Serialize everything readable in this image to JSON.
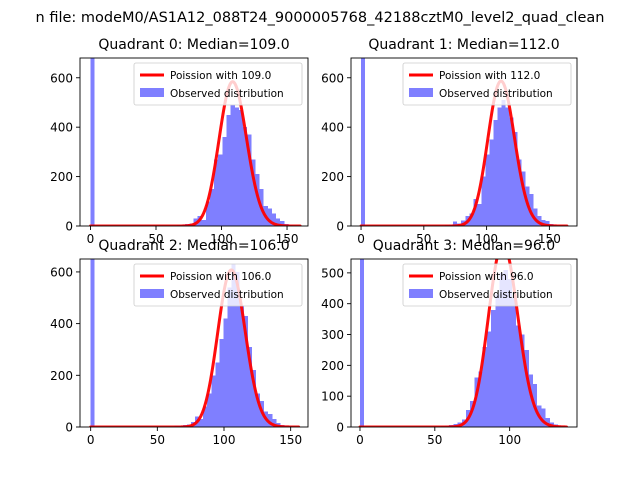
{
  "figure_title": "n file: modeM0/AS1A12_088T24_9000005768_42188cztM0_level2_quad_clean",
  "chart_data": [
    {
      "type": "histogram",
      "title": "Quadrant 0: Median=109.0",
      "xlim": [
        -8,
        166
      ],
      "ylim": [
        0,
        680
      ],
      "xticks": [
        0,
        50,
        100,
        150
      ],
      "yticks": [
        0,
        200,
        400,
        600
      ],
      "xtick_labels": [
        "0",
        "50",
        "100",
        "150"
      ],
      "ytick_labels": [
        "0",
        "200",
        "400",
        "600"
      ],
      "legend": [
        "Poission with 109.0",
        "Observed distribution"
      ],
      "legend_position": "top-right",
      "poisson_mean": 109.0,
      "bin_width": 3.15,
      "bins": [
        [
          0,
          3.15,
          680
        ],
        [
          66,
          69.15,
          5
        ],
        [
          69.15,
          72.3,
          6
        ],
        [
          72.3,
          75.45,
          8
        ],
        [
          75.45,
          78.6,
          10
        ],
        [
          78.6,
          81.75,
          30
        ],
        [
          81.75,
          84.9,
          40
        ],
        [
          84.9,
          88.05,
          25
        ],
        [
          88.05,
          91.2,
          100
        ],
        [
          91.2,
          94.35,
          150
        ],
        [
          94.35,
          97.5,
          270
        ],
        [
          97.5,
          100.65,
          290
        ],
        [
          100.65,
          103.8,
          360
        ],
        [
          103.8,
          106.95,
          450
        ],
        [
          106.95,
          110.1,
          490
        ],
        [
          110.1,
          113.25,
          480
        ],
        [
          113.25,
          116.4,
          470
        ],
        [
          116.4,
          119.55,
          400
        ],
        [
          119.55,
          122.7,
          370
        ],
        [
          122.7,
          125.85,
          270
        ],
        [
          125.85,
          129,
          210
        ],
        [
          129,
          132.15,
          150
        ],
        [
          132.15,
          135.3,
          80
        ],
        [
          135.3,
          138.45,
          70
        ],
        [
          138.45,
          141.6,
          50
        ],
        [
          141.6,
          144.75,
          30
        ],
        [
          144.75,
          147.9,
          20
        ],
        [
          147.9,
          151.05,
          8
        ],
        [
          151.05,
          154.2,
          5
        ],
        [
          154.2,
          157.35,
          3
        ],
        [
          157.35,
          160.5,
          2
        ]
      ],
      "line_x_range": [
        0,
        160
      ]
    },
    {
      "type": "histogram",
      "title": "Quadrant 1: Median=112.0",
      "xlim": [
        -8,
        172
      ],
      "ylim": [
        0,
        680
      ],
      "xticks": [
        0,
        50,
        100,
        150
      ],
      "yticks": [
        0,
        200,
        400,
        600
      ],
      "xtick_labels": [
        "0",
        "50",
        "100",
        "150"
      ],
      "ytick_labels": [
        "0",
        "200",
        "400",
        "600"
      ],
      "legend": [
        "Poission with 112.0",
        "Observed distribution"
      ],
      "legend_position": "top-right",
      "poisson_mean": 112.0,
      "bin_width": 3.2,
      "bins": [
        [
          0,
          3.2,
          680
        ],
        [
          67,
          70.2,
          5
        ],
        [
          70.2,
          73.4,
          6
        ],
        [
          73.4,
          76.6,
          18
        ],
        [
          76.6,
          79.8,
          10
        ],
        [
          79.8,
          83,
          22
        ],
        [
          83,
          86.2,
          40
        ],
        [
          86.2,
          89.4,
          50
        ],
        [
          89.4,
          92.6,
          110
        ],
        [
          92.6,
          95.8,
          90
        ],
        [
          95.8,
          99,
          200
        ],
        [
          99,
          102.2,
          290
        ],
        [
          102.2,
          105.4,
          350
        ],
        [
          105.4,
          108.6,
          430
        ],
        [
          108.6,
          111.8,
          480
        ],
        [
          111.8,
          115,
          510
        ],
        [
          115,
          118.2,
          480
        ],
        [
          118.2,
          121.4,
          440
        ],
        [
          121.4,
          124.6,
          380
        ],
        [
          124.6,
          127.8,
          270
        ],
        [
          127.8,
          131,
          220
        ],
        [
          131,
          134.2,
          160
        ],
        [
          134.2,
          137.4,
          130
        ],
        [
          137.4,
          140.6,
          70
        ],
        [
          140.6,
          143.8,
          40
        ],
        [
          143.8,
          147,
          25
        ],
        [
          147,
          150.2,
          20
        ],
        [
          150.2,
          153.4,
          8
        ],
        [
          153.4,
          156.6,
          5
        ],
        [
          156.6,
          159.8,
          3
        ],
        [
          159.8,
          163,
          2
        ]
      ],
      "line_x_range": [
        0,
        164
      ]
    },
    {
      "type": "histogram",
      "title": "Quadrant 2: Median=106.0",
      "xlim": [
        -8,
        163
      ],
      "ylim": [
        0,
        650
      ],
      "xticks": [
        0,
        50,
        100,
        150
      ],
      "yticks": [
        0,
        200,
        400,
        600
      ],
      "xtick_labels": [
        "0",
        "50",
        "100",
        "150"
      ],
      "ytick_labels": [
        "0",
        "200",
        "400",
        "600"
      ],
      "legend": [
        "Poission with 106.0",
        "Observed distribution"
      ],
      "legend_position": "top-right",
      "poisson_mean": 106.0,
      "bin_width": 3.05,
      "bins": [
        [
          0,
          3.05,
          650
        ],
        [
          63,
          66.05,
          5
        ],
        [
          66.05,
          69.1,
          5
        ],
        [
          69.1,
          72.15,
          8
        ],
        [
          72.15,
          75.2,
          10
        ],
        [
          75.2,
          78.25,
          20
        ],
        [
          78.25,
          81.3,
          40
        ],
        [
          81.3,
          84.35,
          30
        ],
        [
          84.35,
          87.4,
          80
        ],
        [
          87.4,
          90.45,
          130
        ],
        [
          90.45,
          93.5,
          200
        ],
        [
          93.5,
          96.55,
          250
        ],
        [
          96.55,
          99.6,
          340
        ],
        [
          99.6,
          102.65,
          420
        ],
        [
          102.65,
          105.7,
          540
        ],
        [
          105.7,
          108.75,
          630
        ],
        [
          108.75,
          111.8,
          600
        ],
        [
          111.8,
          114.85,
          470
        ],
        [
          114.85,
          117.9,
          430
        ],
        [
          117.9,
          120.95,
          310
        ],
        [
          120.95,
          124,
          220
        ],
        [
          124,
          127.05,
          130
        ],
        [
          127.05,
          130.1,
          100
        ],
        [
          130.1,
          133.15,
          60
        ],
        [
          133.15,
          136.2,
          50
        ],
        [
          136.2,
          139.25,
          30
        ],
        [
          139.25,
          142.3,
          15
        ],
        [
          142.3,
          145.35,
          8
        ],
        [
          145.35,
          148.4,
          5
        ],
        [
          148.4,
          151.45,
          3
        ],
        [
          151.45,
          154.5,
          2
        ]
      ],
      "line_x_range": [
        0,
        156
      ]
    },
    {
      "type": "histogram",
      "title": "Quadrant 3: Median=96.0",
      "xlim": [
        -6,
        145
      ],
      "ylim": [
        0,
        545
      ],
      "xticks": [
        0,
        50,
        100
      ],
      "yticks": [
        0,
        100,
        200,
        300,
        400,
        500
      ],
      "xtick_labels": [
        "0",
        "50",
        "100"
      ],
      "ytick_labels": [
        "0",
        "100",
        "200",
        "300",
        "400",
        "500"
      ],
      "legend": [
        "Poission with 96.0",
        "Observed distribution"
      ],
      "legend_position": "top-right",
      "poisson_mean": 96.0,
      "bin_width": 2.8,
      "bins": [
        [
          0,
          2.8,
          545
        ],
        [
          54,
          56.8,
          3
        ],
        [
          56.8,
          59.6,
          5
        ],
        [
          59.6,
          62.4,
          6
        ],
        [
          62.4,
          65.2,
          10
        ],
        [
          65.2,
          68,
          15
        ],
        [
          68,
          70.8,
          25
        ],
        [
          70.8,
          73.6,
          55
        ],
        [
          73.6,
          76.4,
          85
        ],
        [
          76.4,
          79.2,
          160
        ],
        [
          79.2,
          82,
          180
        ],
        [
          82,
          84.8,
          260
        ],
        [
          84.8,
          87.6,
          310
        ],
        [
          87.6,
          90.4,
          380
        ],
        [
          90.4,
          93.2,
          430
        ],
        [
          93.2,
          96,
          500
        ],
        [
          96,
          98.8,
          510
        ],
        [
          98.8,
          101.6,
          480
        ],
        [
          101.6,
          104.4,
          420
        ],
        [
          104.4,
          107.2,
          330
        ],
        [
          107.2,
          110,
          300
        ],
        [
          110,
          112.8,
          250
        ],
        [
          112.8,
          115.6,
          170
        ],
        [
          115.6,
          118.4,
          140
        ],
        [
          118.4,
          121.2,
          70
        ],
        [
          121.2,
          124,
          60
        ],
        [
          124,
          126.8,
          30
        ],
        [
          126.8,
          129.6,
          15
        ],
        [
          129.6,
          132.4,
          8
        ],
        [
          132.4,
          135.2,
          5
        ],
        [
          135.2,
          138,
          3
        ]
      ],
      "line_x_range": [
        0,
        138
      ]
    }
  ],
  "colors": {
    "bar": "#7f7fff",
    "line": "#ff0000"
  }
}
